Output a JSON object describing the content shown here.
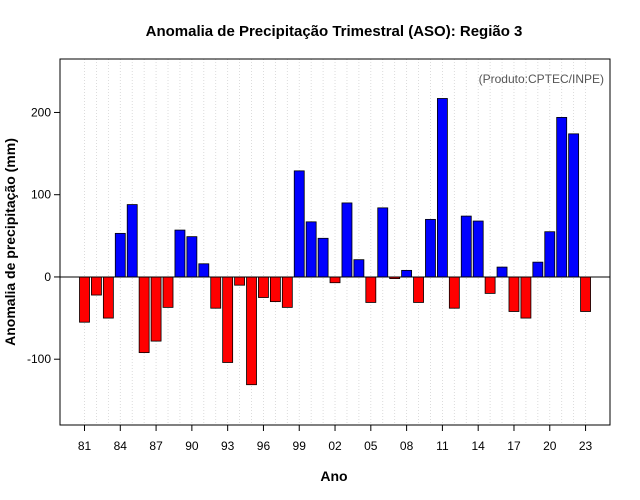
{
  "chart_data": {
    "type": "bar",
    "title": "Anomalia de Precipitação Trimestral (ASO): Região 3",
    "xlabel": "Ano",
    "ylabel": "Anomalia de precipitação (mm)",
    "credit": "(Produto:CPTEC/INPE)",
    "ylim": [
      -180,
      265
    ],
    "yticks": [
      -100,
      0,
      100,
      200
    ],
    "ytick_labels": [
      "-100",
      "0",
      "100",
      "200"
    ],
    "x_tick_labels": [
      "81",
      "84",
      "87",
      "90",
      "93",
      "96",
      "99",
      "02",
      "05",
      "08",
      "11",
      "14",
      "17",
      "20",
      "23"
    ],
    "x_tick_every": 3,
    "grid": true,
    "years": [
      "1981",
      "1982",
      "1983",
      "1984",
      "1985",
      "1986",
      "1987",
      "1988",
      "1989",
      "1990",
      "1991",
      "1992",
      "1993",
      "1994",
      "1995",
      "1996",
      "1997",
      "1998",
      "1999",
      "2000",
      "2001",
      "2002",
      "2003",
      "2004",
      "2005",
      "2006",
      "2007",
      "2008",
      "2009",
      "2010",
      "2011",
      "2012",
      "2013",
      "2014",
      "2015",
      "2016",
      "2017",
      "2018",
      "2019",
      "2020",
      "2021",
      "2022",
      "2023"
    ],
    "values": [
      -55,
      -22,
      -50,
      53,
      88,
      -92,
      -78,
      -37,
      57,
      49,
      16,
      -38,
      -104,
      -10,
      -131,
      -25,
      -30,
      -37,
      129,
      67,
      47,
      -7,
      90,
      21,
      -31,
      84,
      -2,
      8,
      -31,
      70,
      217,
      -38,
      74,
      68,
      -20,
      12,
      -42,
      -50,
      18,
      55,
      194,
      174,
      -42
    ],
    "colors": {
      "positive": "#0000ff",
      "negative": "#ff0000",
      "zero_line": "#000000",
      "grid": "#d3d3d3"
    }
  }
}
